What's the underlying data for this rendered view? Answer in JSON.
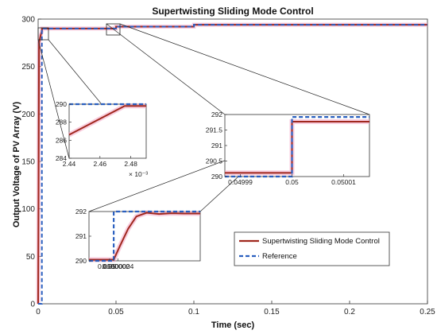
{
  "chart_data": {
    "type": "line",
    "title": "Supertwisting Sliding Mode Control",
    "xlabel": "Time (sec)",
    "ylabel": "Output Voltage of PV Array (V)",
    "xlim": [
      0,
      0.25
    ],
    "ylim": [
      0,
      300
    ],
    "x_ticks": [
      "0",
      "0.05",
      "0.1",
      "0.15",
      "0.2",
      "0.25"
    ],
    "y_ticks": [
      "0",
      "50",
      "100",
      "150",
      "200",
      "250",
      "300"
    ],
    "grid": false,
    "legend_position": "lower-right",
    "series": [
      {
        "name": "Supertwisting Sliding Mode Control",
        "color": "#a0281e",
        "x": [
          0,
          0.0006,
          0.0012,
          0.0018,
          0.0024,
          0.0025,
          0.05,
          0.05005,
          0.1,
          0.1001,
          0.25
        ],
        "y": [
          0,
          275,
          280,
          284,
          287,
          290,
          290,
          292,
          292,
          294,
          294
        ]
      },
      {
        "name": "Reference",
        "color": "#2a5fbf",
        "style": "dashed",
        "x": [
          0,
          0.0024,
          0.0024,
          0.05,
          0.05,
          0.1,
          0.1,
          0.25
        ],
        "y": [
          0,
          0,
          290,
          290,
          292,
          292,
          294,
          294
        ]
      }
    ],
    "insets": [
      {
        "xlim": [
          0.00244,
          0.00249
        ],
        "ylim": [
          284,
          290
        ],
        "x_ticks": [
          "2.44",
          "2.46",
          "2.48"
        ],
        "y_ticks": [
          "284",
          "286",
          "288",
          "290"
        ],
        "exponent_label": "× 10⁻³",
        "series": [
          {
            "name": "Supertwisting Sliding Mode Control",
            "x": [
              0.00244,
              0.002476,
              0.00249
            ],
            "y": [
              286.6,
              289.8,
              289.8
            ]
          },
          {
            "name": "Reference",
            "x": [
              0.00244,
              0.00249
            ],
            "y": [
              290,
              290
            ]
          }
        ]
      },
      {
        "xlim": [
          0.049987,
          0.050015
        ],
        "ylim": [
          290,
          292
        ],
        "x_ticks": [
          "0.04999",
          "0.05",
          "0.05001"
        ],
        "y_ticks": [
          "290",
          "290.5",
          "291",
          "291.5",
          "292"
        ],
        "series": [
          {
            "name": "Supertwisting Sliding Mode Control",
            "x": [
              0.049987,
              0.05,
              0.05,
              0.050015
            ],
            "y": [
              290.12,
              290.12,
              291.77,
              291.77
            ]
          },
          {
            "name": "Reference",
            "x": [
              0.049987,
              0.05,
              0.05,
              0.050015
            ],
            "y": [
              290.0,
              290.0,
              291.92,
              291.92
            ]
          }
        ]
      },
      {
        "xlim": [
          0.049999,
          0.0500044
        ],
        "ylim": [
          290,
          292
        ],
        "x_ticks": [
          "0.05",
          "0.0500002",
          "0.0500004"
        ],
        "y_ticks": [
          "290",
          "291",
          "292"
        ],
        "series": [
          {
            "name": "Supertwisting Sliding Mode Control",
            "x": [
              0.049999,
              0.0500002,
              0.0500005,
              0.0500009,
              0.0500013,
              0.0500018,
              0.0500024,
              0.050003,
              0.0500036,
              0.0500044
            ],
            "y": [
              290.05,
              290.05,
              290.6,
              291.3,
              291.8,
              291.95,
              291.9,
              291.93,
              291.92,
              291.92
            ]
          },
          {
            "name": "Reference",
            "x": [
              0.049999,
              0.0500002,
              0.0500002,
              0.0500044
            ],
            "y": [
              290.0,
              290.0,
              292,
              292
            ]
          }
        ]
      }
    ]
  }
}
